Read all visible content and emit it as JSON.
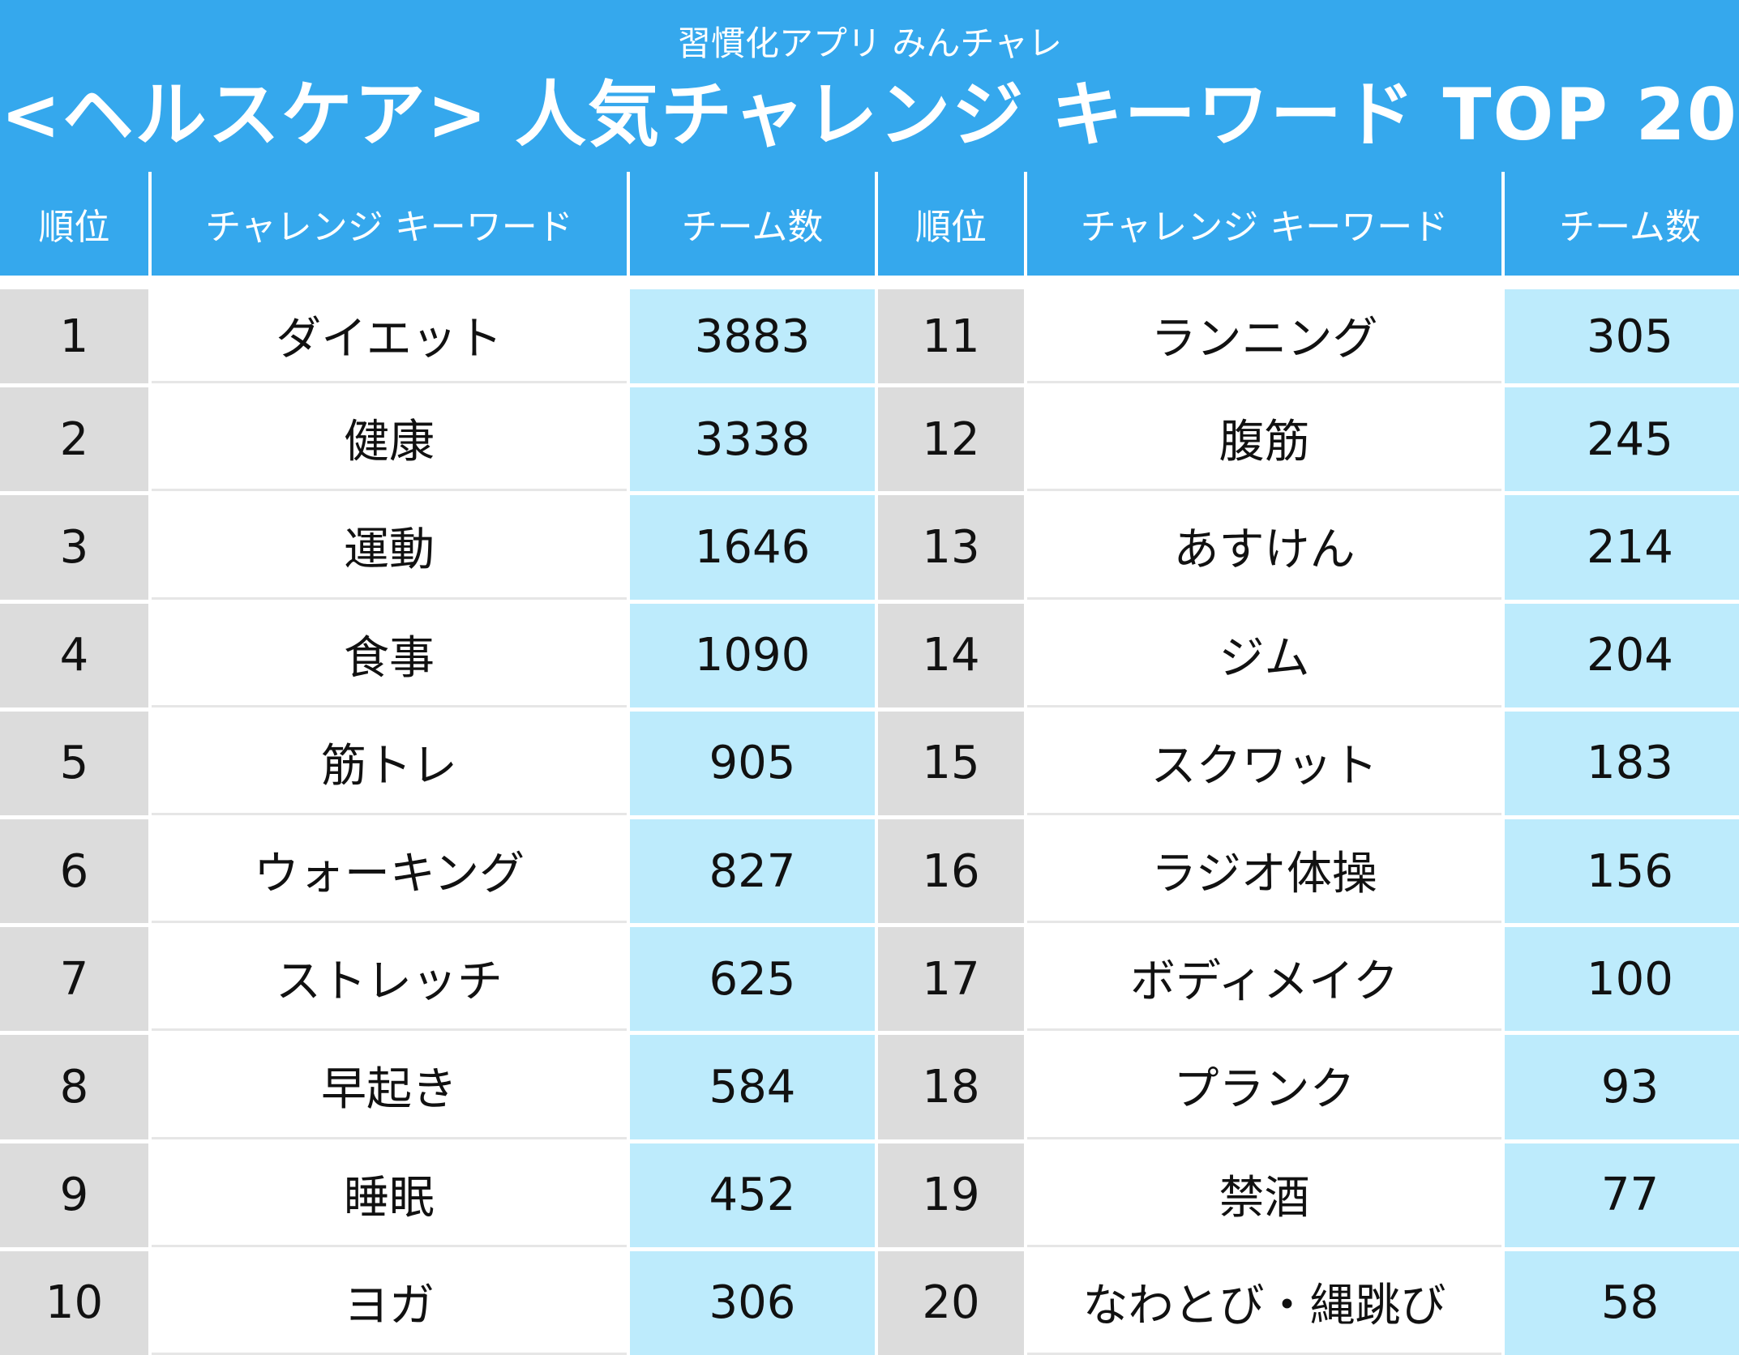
{
  "header": {
    "subtitle": "習慣化アプリ みんチャレ",
    "title": "<ヘルスケア> 人気チャレンジ キーワード TOP 20"
  },
  "columns": {
    "rank": "順位",
    "keyword": "チャレンジ キーワード",
    "teams": "チーム数"
  },
  "rows": [
    {
      "left": {
        "rank": "1",
        "keyword": "ダイエット",
        "teams": "3883"
      },
      "right": {
        "rank": "11",
        "keyword": "ランニング",
        "teams": "305"
      }
    },
    {
      "left": {
        "rank": "2",
        "keyword": "健康",
        "teams": "3338"
      },
      "right": {
        "rank": "12",
        "keyword": "腹筋",
        "teams": "245"
      }
    },
    {
      "left": {
        "rank": "3",
        "keyword": "運動",
        "teams": "1646"
      },
      "right": {
        "rank": "13",
        "keyword": "あすけん",
        "teams": "214"
      }
    },
    {
      "left": {
        "rank": "4",
        "keyword": "食事",
        "teams": "1090"
      },
      "right": {
        "rank": "14",
        "keyword": "ジム",
        "teams": "204"
      }
    },
    {
      "left": {
        "rank": "5",
        "keyword": "筋トレ",
        "teams": "905"
      },
      "right": {
        "rank": "15",
        "keyword": "スクワット",
        "teams": "183"
      }
    },
    {
      "left": {
        "rank": "6",
        "keyword": "ウォーキング",
        "teams": "827"
      },
      "right": {
        "rank": "16",
        "keyword": "ラジオ体操",
        "teams": "156"
      }
    },
    {
      "left": {
        "rank": "7",
        "keyword": "ストレッチ",
        "teams": "625"
      },
      "right": {
        "rank": "17",
        "keyword": "ボディメイク",
        "teams": "100"
      }
    },
    {
      "left": {
        "rank": "8",
        "keyword": "早起き",
        "teams": "584"
      },
      "right": {
        "rank": "18",
        "keyword": "プランク",
        "teams": "93"
      }
    },
    {
      "left": {
        "rank": "9",
        "keyword": "睡眠",
        "teams": "452"
      },
      "right": {
        "rank": "19",
        "keyword": "禁酒",
        "teams": "77"
      }
    },
    {
      "left": {
        "rank": "10",
        "keyword": "ヨガ",
        "teams": "306"
      },
      "right": {
        "rank": "20",
        "keyword": "なわとび・縄跳び",
        "teams": "58"
      }
    }
  ],
  "colors": {
    "header_blue": "#35a8ed",
    "rank_gray": "#dcdcdc",
    "count_light_blue": "#bdebfc"
  }
}
